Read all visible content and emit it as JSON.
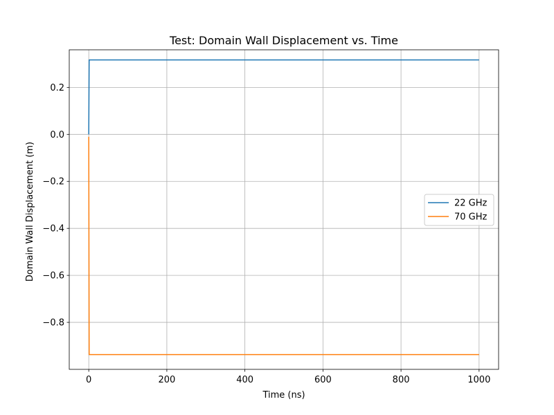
{
  "chart_data": {
    "type": "line",
    "title": "Test: Domain Wall Displacement vs. Time",
    "xlabel": "Time (ns)",
    "ylabel": "Domain Wall Displacement (m)",
    "xlim": [
      -50,
      1050
    ],
    "ylim": [
      -1.0,
      0.36
    ],
    "xticks": [
      0,
      200,
      400,
      600,
      800,
      1000
    ],
    "xtick_labels": [
      "0",
      "200",
      "400",
      "600",
      "800",
      "1000"
    ],
    "yticks": [
      0.2,
      0.0,
      -0.2,
      -0.4,
      -0.6,
      -0.8
    ],
    "ytick_labels": [
      "0.2",
      "0.0",
      "−0.2",
      "−0.4",
      "−0.6",
      "−0.8"
    ],
    "grid": true,
    "legend_position": "center-right",
    "series": [
      {
        "name": "22 GHz",
        "color": "#1f77b4",
        "x": [
          0,
          1,
          1000
        ],
        "y": [
          0.0,
          0.317,
          0.317
        ]
      },
      {
        "name": "70 GHz",
        "color": "#ff7f0e",
        "x": [
          0,
          1,
          1000
        ],
        "y": [
          -0.01,
          -0.937,
          -0.937
        ]
      }
    ]
  }
}
